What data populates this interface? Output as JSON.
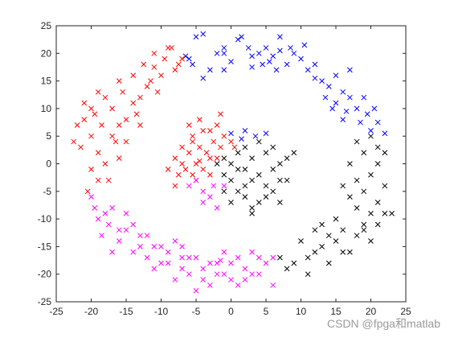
{
  "watermark": "CSDN @fpga和matlab",
  "chart_data": {
    "type": "scatter",
    "title": "",
    "xlabel": "",
    "ylabel": "",
    "xlim": [
      -25,
      25
    ],
    "ylim": [
      -25,
      25
    ],
    "xticks": [
      -25,
      -20,
      -15,
      -10,
      -5,
      0,
      5,
      10,
      15,
      20,
      25
    ],
    "yticks": [
      -25,
      -20,
      -15,
      -10,
      -5,
      0,
      5,
      10,
      15,
      20,
      25
    ],
    "grid": false,
    "marker": "x",
    "series": [
      {
        "color": "#0000ff",
        "points": [
          [
            -6.5,
            19.5
          ],
          [
            -5,
            23
          ],
          [
            -4,
            23.5
          ],
          [
            -5.5,
            18
          ],
          [
            -3,
            17
          ],
          [
            -2,
            20
          ],
          [
            -1,
            21
          ],
          [
            0,
            18.5
          ],
          [
            1,
            22.5
          ],
          [
            1.5,
            23
          ],
          [
            2.5,
            21
          ],
          [
            3,
            19.5
          ],
          [
            4,
            20
          ],
          [
            5,
            21
          ],
          [
            6,
            19.5
          ],
          [
            7,
            23
          ],
          [
            7,
            20.5
          ],
          [
            8,
            18
          ],
          [
            6.5,
            17
          ],
          [
            9,
            20
          ],
          [
            10,
            19
          ],
          [
            11,
            17
          ],
          [
            10.5,
            21.5
          ],
          [
            12,
            18
          ],
          [
            13,
            15
          ],
          [
            13.5,
            12
          ],
          [
            14,
            14
          ],
          [
            15,
            11
          ],
          [
            16,
            13
          ],
          [
            16.5,
            9.5
          ],
          [
            17,
            12
          ],
          [
            18,
            10
          ],
          [
            18.5,
            7.5
          ],
          [
            19.5,
            9
          ],
          [
            20,
            6
          ],
          [
            21,
            7.5
          ],
          [
            22,
            5.5
          ],
          [
            -1,
            17
          ],
          [
            3,
            17.5
          ],
          [
            4.5,
            18
          ],
          [
            -4,
            15.5
          ],
          [
            -6,
            19
          ],
          [
            8.5,
            21
          ],
          [
            15,
            16
          ],
          [
            17,
            17
          ],
          [
            19,
            12
          ],
          [
            20.5,
            10
          ],
          [
            0,
            5.5
          ],
          [
            2,
            6
          ],
          [
            3.5,
            5
          ],
          [
            5,
            5.5
          ],
          [
            1.5,
            4.5
          ],
          [
            -1,
            20
          ],
          [
            5.5,
            18.5
          ],
          [
            12,
            15.5
          ],
          [
            14.5,
            10
          ],
          [
            16,
            8
          ]
        ]
      },
      {
        "color": "#ff0000",
        "points": [
          [
            -22,
            7
          ],
          [
            -21,
            11
          ],
          [
            -20,
            5
          ],
          [
            -19.5,
            9
          ],
          [
            -19,
            2
          ],
          [
            -18,
            12
          ],
          [
            -17,
            10
          ],
          [
            -16.5,
            4
          ],
          [
            -15.5,
            13
          ],
          [
            -15,
            8
          ],
          [
            -14,
            16
          ],
          [
            -13,
            12
          ],
          [
            -12.5,
            18
          ],
          [
            -11.5,
            15
          ],
          [
            -11,
            20
          ],
          [
            -10,
            16
          ],
          [
            -9.5,
            19
          ],
          [
            -8.5,
            21
          ],
          [
            -8,
            17
          ],
          [
            -7,
            19
          ],
          [
            -21.5,
            3
          ],
          [
            -20,
            -1
          ],
          [
            -19,
            -3
          ],
          [
            -18,
            0
          ],
          [
            -17.5,
            -3
          ],
          [
            -16,
            1
          ],
          [
            -20.5,
            -5
          ],
          [
            -15,
            4
          ],
          [
            -13.5,
            9
          ],
          [
            -12,
            14
          ],
          [
            -10.5,
            13
          ],
          [
            -9,
            21
          ],
          [
            -16,
            15
          ],
          [
            -18.5,
            7
          ],
          [
            -21,
            8
          ],
          [
            -19,
            13
          ],
          [
            -17,
            5
          ],
          [
            -14,
            11
          ],
          [
            -11,
            17.5
          ],
          [
            -7.5,
            18
          ],
          [
            -8,
            1
          ],
          [
            -7,
            3
          ],
          [
            -6,
            2
          ],
          [
            -5.5,
            5
          ],
          [
            -5,
            0
          ],
          [
            -4.5,
            3
          ],
          [
            -4,
            6
          ],
          [
            -3,
            1
          ],
          [
            -2.5,
            4
          ],
          [
            -2,
            7
          ],
          [
            -6.5,
            -1
          ],
          [
            -5.5,
            -2
          ],
          [
            -4,
            -1
          ],
          [
            -3.5,
            2
          ],
          [
            -7.5,
            -2
          ],
          [
            -3,
            6
          ],
          [
            -1.5,
            3
          ],
          [
            -1,
            5
          ],
          [
            0,
            4
          ],
          [
            0.5,
            3
          ],
          [
            -6,
            7
          ],
          [
            -4.5,
            8
          ],
          [
            -5,
            -3
          ],
          [
            -7,
            0
          ],
          [
            -8,
            -4
          ],
          [
            -3,
            -2
          ],
          [
            -2,
            1
          ],
          [
            -9,
            -1
          ],
          [
            -4.5,
            0.5
          ],
          [
            -5.5,
            4
          ],
          [
            -1.5,
            9
          ],
          [
            -20,
            10
          ],
          [
            -16,
            7
          ],
          [
            -13,
            7
          ],
          [
            -22.5,
            4
          ]
        ]
      },
      {
        "color": "#ff00ff",
        "points": [
          [
            -20,
            -6
          ],
          [
            -19,
            -10
          ],
          [
            -18.5,
            -13
          ],
          [
            -17.5,
            -11
          ],
          [
            -17,
            -8
          ],
          [
            -16,
            -14
          ],
          [
            -15,
            -12
          ],
          [
            -14,
            -16
          ],
          [
            -13,
            -13
          ],
          [
            -12,
            -17
          ],
          [
            -11,
            -19
          ],
          [
            -10,
            -15
          ],
          [
            -9,
            -18
          ],
          [
            -8,
            -21
          ],
          [
            -7,
            -17
          ],
          [
            -6,
            -20
          ],
          [
            -5,
            -23
          ],
          [
            -4,
            -19
          ],
          [
            -3,
            -22
          ],
          [
            -2,
            -18
          ],
          [
            -1,
            -20
          ],
          [
            0,
            -21
          ],
          [
            1,
            -17
          ],
          [
            2,
            -19
          ],
          [
            3,
            -16
          ],
          [
            4,
            -20
          ],
          [
            5,
            -18
          ],
          [
            6,
            -22
          ],
          [
            -17,
            -16
          ],
          [
            -15,
            -9
          ],
          [
            -12,
            -13
          ],
          [
            -11,
            -15
          ],
          [
            -9,
            -16
          ],
          [
            -7,
            -19
          ],
          [
            -5,
            -17
          ],
          [
            -3,
            -18
          ],
          [
            -1,
            -16
          ],
          [
            1,
            -22
          ],
          [
            3,
            -20
          ],
          [
            4,
            -17
          ],
          [
            -18,
            -9
          ],
          [
            -16,
            -12
          ],
          [
            -14,
            -11
          ],
          [
            -8,
            -14
          ],
          [
            -6,
            -17
          ],
          [
            -4,
            -21
          ],
          [
            -2,
            -20
          ],
          [
            0,
            -18
          ],
          [
            2,
            -21
          ],
          [
            6,
            -17
          ],
          [
            -6,
            -4
          ],
          [
            -5,
            -3
          ],
          [
            -4,
            -5
          ],
          [
            -3,
            -6
          ],
          [
            -2,
            -8
          ],
          [
            -1,
            -4
          ],
          [
            -4,
            -7
          ],
          [
            -2.5,
            -4
          ],
          [
            -19.5,
            -8
          ],
          [
            -13,
            -15
          ],
          [
            -10,
            -18
          ],
          [
            -7,
            -15
          ],
          [
            -1.5,
            -17.5
          ]
        ]
      },
      {
        "color": "#000000",
        "points": [
          [
            1,
            2
          ],
          [
            2,
            3
          ],
          [
            3,
            1
          ],
          [
            4,
            4
          ],
          [
            5,
            2
          ],
          [
            2,
            -1
          ],
          [
            3,
            -3
          ],
          [
            4,
            -2
          ],
          [
            5,
            -4
          ],
          [
            6,
            -1
          ],
          [
            1,
            -5
          ],
          [
            2,
            -6
          ],
          [
            3,
            -8
          ],
          [
            0,
            -3
          ],
          [
            -1,
            -2
          ],
          [
            -2,
            0
          ],
          [
            -1,
            1
          ],
          [
            0,
            0
          ],
          [
            1,
            -1
          ],
          [
            6,
            3
          ],
          [
            7,
            0
          ],
          [
            8,
            -3
          ],
          [
            -1,
            -5
          ],
          [
            0,
            -7
          ],
          [
            3,
            -9
          ],
          [
            5,
            -6
          ],
          [
            6,
            -5
          ],
          [
            7,
            -7
          ],
          [
            8,
            1
          ],
          [
            9,
            2
          ],
          [
            10,
            -14
          ],
          [
            11,
            -17
          ],
          [
            12,
            -12
          ],
          [
            13,
            -15
          ],
          [
            14,
            -18
          ],
          [
            15,
            -14
          ],
          [
            16,
            -12
          ],
          [
            17,
            -16
          ],
          [
            18,
            -13
          ],
          [
            19,
            -11
          ],
          [
            20,
            -9
          ],
          [
            21,
            -7
          ],
          [
            19,
            -5
          ],
          [
            18,
            -3
          ],
          [
            20,
            -2
          ],
          [
            21,
            0
          ],
          [
            22,
            2
          ],
          [
            19,
            2
          ],
          [
            18,
            4
          ],
          [
            20,
            5
          ],
          [
            21,
            3
          ],
          [
            17,
            0
          ],
          [
            16,
            -4
          ],
          [
            18,
            -8
          ],
          [
            19,
            -12
          ],
          [
            20,
            -14
          ],
          [
            21,
            -11
          ],
          [
            22,
            -9
          ],
          [
            13,
            -11
          ],
          [
            12,
            -16
          ],
          [
            9,
            -18
          ],
          [
            8,
            -19
          ],
          [
            7,
            -17
          ],
          [
            11,
            -20
          ],
          [
            14,
            -13
          ],
          [
            16,
            -16
          ],
          [
            23,
            -9
          ],
          [
            22,
            -4
          ],
          [
            17,
            -6
          ],
          [
            15,
            -10
          ],
          [
            4,
            -7
          ],
          [
            2,
            -4
          ],
          [
            7,
            -3
          ]
        ]
      }
    ]
  }
}
